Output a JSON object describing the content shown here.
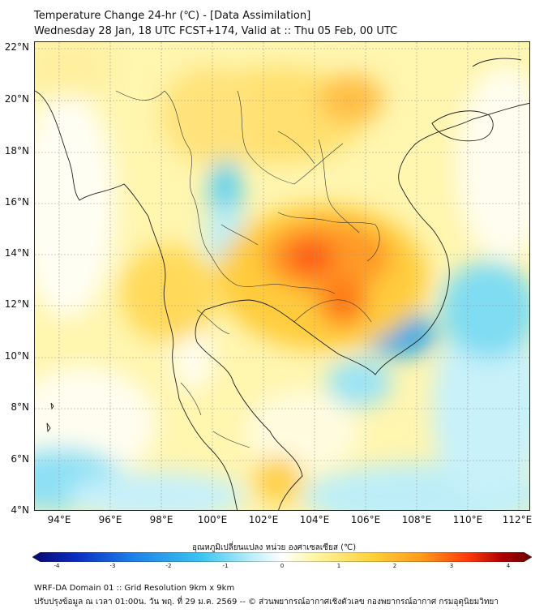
{
  "header": {
    "title_line1": "Temperature Change 24-hr (℃) - [Data Assimilation]",
    "title_line2": "Wednesday 28 Jan, 18 UTC FCST+174, Valid at :: Thu 05 Feb, 00 UTC"
  },
  "map": {
    "lat_labels": [
      "22°N",
      "20°N",
      "18°N",
      "16°N",
      "14°N",
      "12°N",
      "10°N",
      "8°N",
      "6°N",
      "4°N"
    ],
    "lon_labels": [
      "94°E",
      "96°E",
      "98°E",
      "100°E",
      "102°E",
      "104°E",
      "106°E",
      "108°E",
      "110°E",
      "112°E"
    ],
    "lat_range": [
      4,
      22.2
    ],
    "lon_range": [
      93,
      112.4
    ]
  },
  "colorbar": {
    "title": "อุณหภูมิเปลี่ยนแปลง หน่วย องศาเซลเซียส (℃)",
    "labels": [
      "-4",
      "-3",
      "-2",
      "-1",
      "0",
      "1",
      "2",
      "3",
      "4"
    ],
    "min": -4,
    "max": 4,
    "colors": [
      "#08086b",
      "#0a2fc4",
      "#1d7fe8",
      "#3bc6f0",
      "#bdeef8",
      "#ffffff",
      "#fff4a0",
      "#ffd13a",
      "#ff9a1a",
      "#ff3b0a",
      "#b00000",
      "#6b0000"
    ]
  },
  "footer": {
    "line1": "WRF-DA Domain 01 :: Grid Resolution 9km x 9km",
    "line2": "ปรับปรุงข้อมูล ณ เวลา 01:00น. วัน พฤ. ที่ 29 ม.ค. 2569 -- © ส่วนพยากรณ์อากาศเชิงตัวเลข กองพยากรณ์อากาศ กรมอุตุนิยมวิทยา"
  }
}
